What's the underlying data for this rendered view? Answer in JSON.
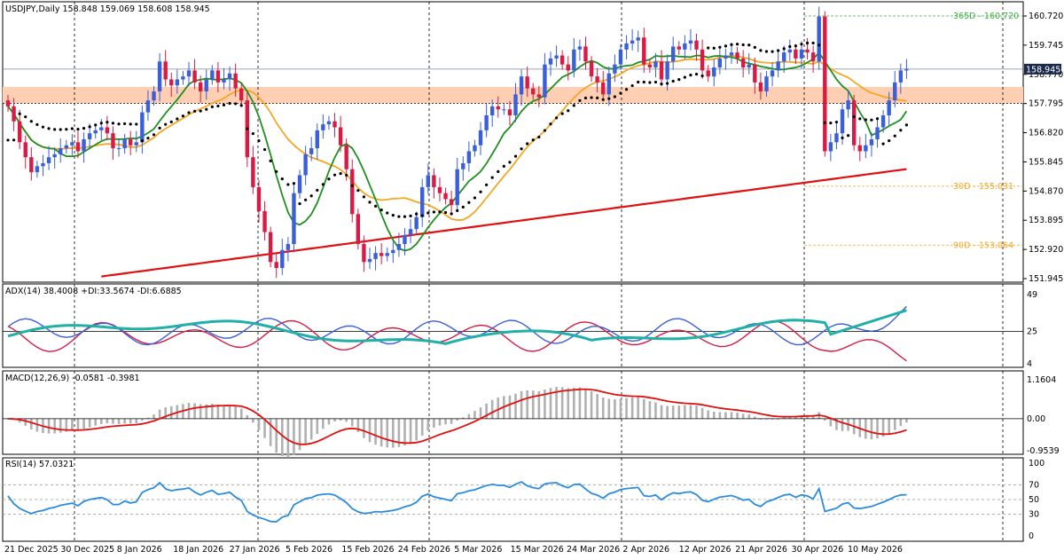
{
  "panels": {
    "main": {
      "title": "USDJPY,Daily  158.848 159.069 158.608 158.945",
      "last_price": "158.945",
      "levels": [
        {
          "label": "365D - 160.720",
          "value": 160.72,
          "color": "#3cb043"
        },
        {
          "label": "30D - 155.031",
          "value": 155.031,
          "color": "#f5a623"
        },
        {
          "label": "90D - 153.064",
          "value": 153.064,
          "color": "#f5a623"
        }
      ],
      "zone_color": "#ffcfb3",
      "zone": [
        157.8,
        158.35
      ],
      "price_ticks": [
        "160.720",
        "159.745",
        "158.770",
        "157.795",
        "156.820",
        "155.845",
        "154.870",
        "153.895",
        "152.920",
        "151.945"
      ]
    },
    "adx": {
      "title": "ADX(14) 38.4008 +DI:33.5674 -DI:6.6885",
      "ticks": [
        "49",
        "25",
        "4"
      ]
    },
    "macd": {
      "title": "MACD(12,26,9) -0.0581 -0.3981",
      "ticks": [
        "1.1604",
        "0.00",
        "-0.9539"
      ]
    },
    "rsi": {
      "title": "RSI(14) 57.0321",
      "ticks": [
        "100",
        "70",
        "50",
        "30",
        "0"
      ]
    }
  },
  "x_labels": [
    "21 Dec 2025",
    "30 Dec 2025",
    "8 Jan 2026",
    "18 Jan 2026",
    "27 Jan 2026",
    "5 Feb 2026",
    "15 Feb 2026",
    "24 Feb 2026",
    "5 Mar 2026",
    "15 Mar 2026",
    "24 Mar 2026",
    "2 Apr 2026",
    "12 Apr 2026",
    "21 Apr 2026",
    "30 Apr 2026",
    "10 May 2026"
  ],
  "colors": {
    "bull": "#3a5fd9",
    "bear": "#d81b45",
    "ma_fast": "#1f8f1f",
    "ma_mid": "#f5a623",
    "ma_slow": "#e01010",
    "adx": "#20b0a8",
    "plus_di": "#3a5fd9",
    "minus_di": "#d81b45",
    "macd_signal": "#e01010",
    "macd_hist": "#b0b0b0",
    "rsi": "#2a8cdf"
  },
  "chart_data": [
    {
      "type": "candlestick",
      "title": "USDJPY,Daily",
      "ylim": [
        151.945,
        160.72
      ],
      "x_start": "21 Dec 2025",
      "bars": 155,
      "close": [
        157.7,
        157.2,
        156.5,
        156.0,
        155.5,
        155.7,
        155.8,
        156.0,
        156.1,
        156.3,
        156.4,
        156.5,
        156.2,
        156.6,
        156.8,
        156.9,
        157.0,
        156.8,
        156.3,
        156.3,
        156.6,
        156.4,
        156.5,
        157.5,
        157.9,
        158.2,
        159.2,
        158.6,
        158.4,
        158.6,
        158.7,
        158.9,
        158.5,
        158.2,
        158.6,
        158.9,
        158.5,
        158.6,
        158.8,
        158.3,
        157.9,
        156.0,
        155.0,
        154.2,
        153.5,
        152.5,
        152.3,
        152.9,
        153.1,
        154.8,
        155.4,
        156.1,
        156.3,
        156.9,
        157.1,
        157.2,
        157.0,
        156.4,
        155.6,
        154.1,
        153.1,
        152.5,
        152.6,
        152.8,
        152.7,
        152.8,
        152.9,
        153.1,
        153.4,
        153.6,
        154.0,
        155.0,
        155.4,
        155.0,
        154.8,
        154.6,
        154.4,
        155.6,
        155.8,
        156.2,
        156.4,
        156.9,
        157.4,
        157.7,
        157.6,
        157.6,
        157.4,
        158.1,
        158.7,
        158.3,
        158.1,
        158.0,
        159.1,
        159.3,
        159.4,
        159.1,
        158.9,
        159.6,
        159.7,
        159.2,
        158.7,
        158.5,
        158.1,
        158.8,
        159.1,
        159.6,
        159.8,
        159.9,
        160.0,
        159.1,
        159.0,
        159.2,
        158.6,
        159.2,
        159.7,
        159.6,
        159.8,
        159.9,
        159.6,
        158.9,
        158.7,
        159.0,
        159.3,
        159.4,
        159.5,
        159.3,
        159.0,
        159.1,
        158.5,
        158.2,
        158.7,
        158.9,
        159.2,
        159.5,
        159.6,
        159.3,
        159.6,
        159.5,
        159.2,
        160.7,
        156.2,
        156.5,
        156.8,
        157.6,
        157.9,
        156.4,
        156.2,
        156.4,
        156.6,
        157.0,
        157.4,
        157.9,
        158.5,
        158.9,
        158.95
      ],
      "series": [
        {
          "name": "",
          "role": "ma_fast"
        },
        {
          "name": "",
          "role": "ma_mid"
        },
        {
          "name": "",
          "role": "ma_slow"
        },
        {
          "name": "",
          "role": "parabolic_sar"
        }
      ]
    },
    {
      "type": "line",
      "title": "ADX(14)",
      "ylim": [
        4,
        49
      ],
      "series": [
        {
          "name": "ADX",
          "last": 38.4008
        },
        {
          "name": "+DI",
          "last": 33.5674
        },
        {
          "name": "-DI",
          "last": 6.6885
        }
      ],
      "level": 25
    },
    {
      "type": "bar",
      "title": "MACD(12,26,9)",
      "ylim": [
        -0.9539,
        1.1604
      ],
      "macd_last": -0.0581,
      "signal_last": -0.3981
    },
    {
      "type": "line",
      "title": "RSI(14)",
      "ylim": [
        0,
        100
      ],
      "levels": [
        70,
        50,
        30
      ],
      "last": 57.0321
    }
  ]
}
